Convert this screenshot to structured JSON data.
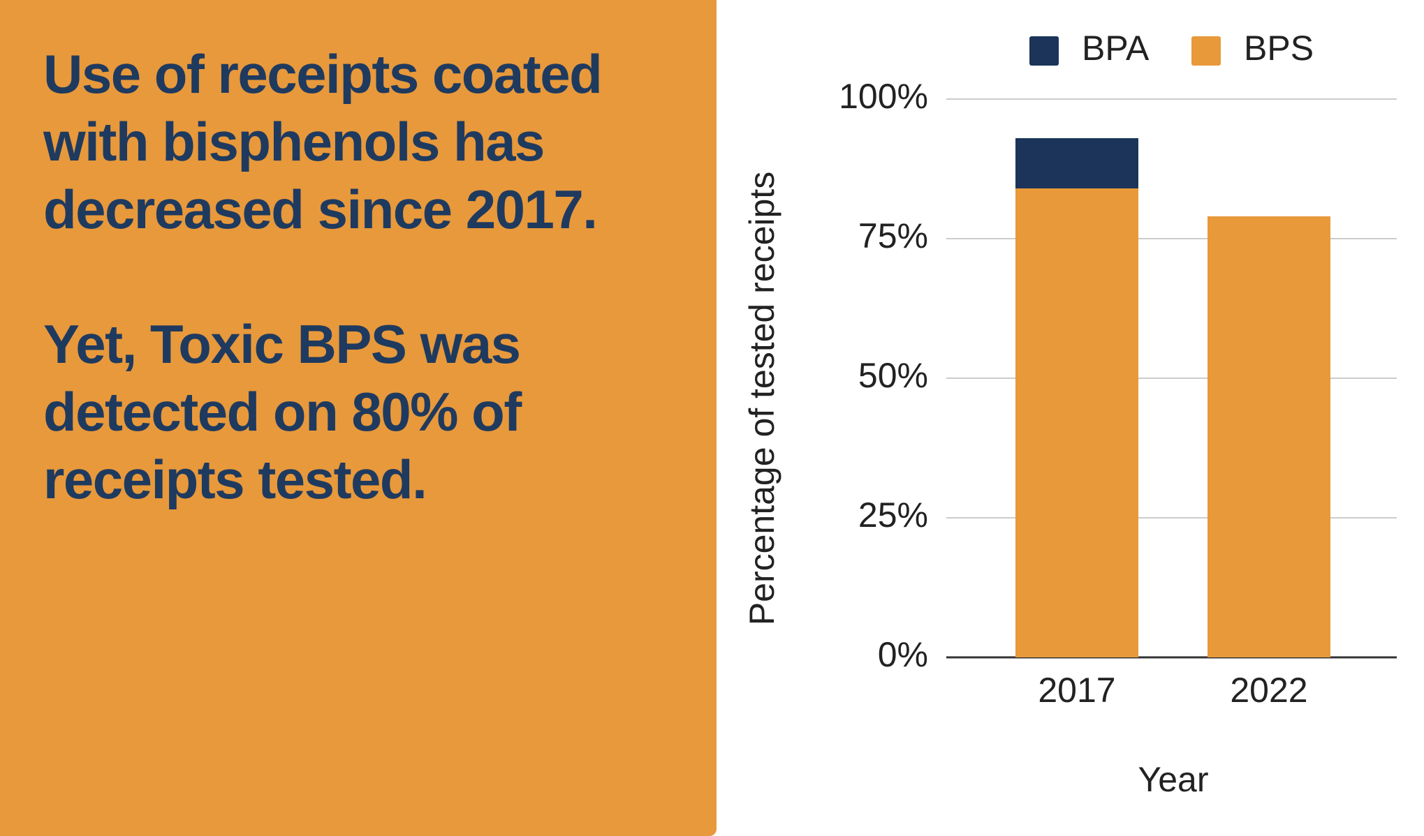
{
  "headline": [
    [
      "Use of receipts coated",
      "with bisphenols has",
      "decreased since 2017."
    ],
    [
      "Yet, Toxic BPS was",
      "detected on 80% of",
      "receipts tested."
    ]
  ],
  "chart_data": {
    "type": "stacked_bar",
    "x_label": "Year",
    "y_label": "Percentage of tested receipts",
    "categories": [
      "2017",
      "2022"
    ],
    "series": [
      {
        "name": "BPA",
        "color": "#1c3459",
        "values": [
          9,
          0
        ]
      },
      {
        "name": "BPS",
        "color": "#e8993a",
        "values": [
          84,
          79
        ]
      }
    ],
    "ylim": [
      0,
      100
    ],
    "yticks": [
      {
        "value": 0,
        "label": "0%"
      },
      {
        "value": 25,
        "label": "25%"
      },
      {
        "value": 50,
        "label": "50%"
      },
      {
        "value": 75,
        "label": "75%"
      },
      {
        "value": 100,
        "label": "100%"
      }
    ],
    "grid": true,
    "legend": "top"
  }
}
